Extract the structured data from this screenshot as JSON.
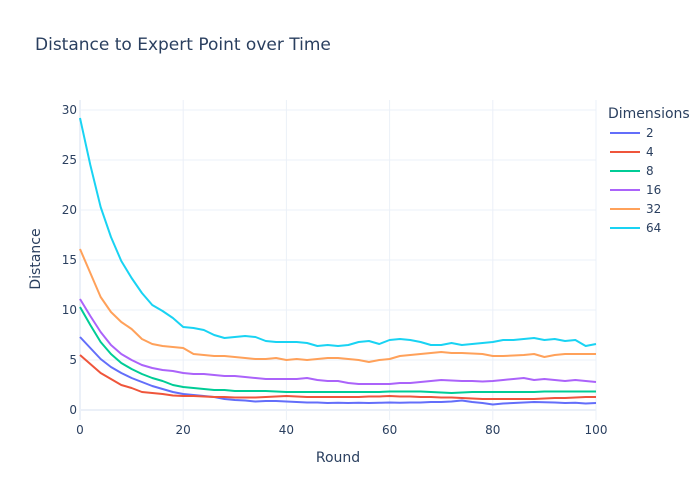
{
  "chart_data": {
    "type": "line",
    "title": "Distance to Expert Point over Time",
    "xlabel": "Round",
    "ylabel": "Distance",
    "xlim": [
      0,
      100
    ],
    "ylim": [
      -1,
      31
    ],
    "x_ticks": [
      0,
      20,
      40,
      60,
      80,
      100
    ],
    "y_ticks": [
      0,
      5,
      10,
      15,
      20,
      25,
      30
    ],
    "grid": true,
    "legend": {
      "title": "Dimensions",
      "placement": "right"
    },
    "series": [
      {
        "name": "2",
        "color": "#636efa",
        "points": [
          [
            0,
            7.3
          ],
          [
            2,
            6.2
          ],
          [
            4,
            5.1
          ],
          [
            6,
            4.3
          ],
          [
            8,
            3.7
          ],
          [
            10,
            3.2
          ],
          [
            12,
            2.8
          ],
          [
            14,
            2.4
          ],
          [
            16,
            2.1
          ],
          [
            18,
            1.8
          ],
          [
            20,
            1.6
          ],
          [
            22,
            1.5
          ],
          [
            24,
            1.4
          ],
          [
            26,
            1.3
          ],
          [
            28,
            1.1
          ],
          [
            30,
            1.0
          ],
          [
            32,
            0.95
          ],
          [
            34,
            0.85
          ],
          [
            36,
            0.9
          ],
          [
            38,
            0.9
          ],
          [
            40,
            0.85
          ],
          [
            42,
            0.8
          ],
          [
            44,
            0.75
          ],
          [
            46,
            0.75
          ],
          [
            48,
            0.7
          ],
          [
            50,
            0.72
          ],
          [
            52,
            0.7
          ],
          [
            54,
            0.72
          ],
          [
            56,
            0.7
          ],
          [
            58,
            0.72
          ],
          [
            60,
            0.75
          ],
          [
            62,
            0.72
          ],
          [
            64,
            0.75
          ],
          [
            66,
            0.75
          ],
          [
            68,
            0.8
          ],
          [
            70,
            0.8
          ],
          [
            72,
            0.85
          ],
          [
            74,
            0.95
          ],
          [
            76,
            0.8
          ],
          [
            78,
            0.7
          ],
          [
            80,
            0.55
          ],
          [
            82,
            0.65
          ],
          [
            84,
            0.7
          ],
          [
            86,
            0.75
          ],
          [
            88,
            0.8
          ],
          [
            90,
            0.78
          ],
          [
            92,
            0.75
          ],
          [
            94,
            0.7
          ],
          [
            96,
            0.72
          ],
          [
            98,
            0.65
          ],
          [
            100,
            0.7
          ]
        ]
      },
      {
        "name": "4",
        "color": "#ef553b",
        "points": [
          [
            0,
            5.5
          ],
          [
            2,
            4.6
          ],
          [
            4,
            3.7
          ],
          [
            6,
            3.1
          ],
          [
            8,
            2.5
          ],
          [
            10,
            2.2
          ],
          [
            12,
            1.8
          ],
          [
            14,
            1.7
          ],
          [
            16,
            1.6
          ],
          [
            18,
            1.45
          ],
          [
            20,
            1.4
          ],
          [
            22,
            1.4
          ],
          [
            24,
            1.35
          ],
          [
            26,
            1.3
          ],
          [
            28,
            1.3
          ],
          [
            30,
            1.25
          ],
          [
            32,
            1.25
          ],
          [
            34,
            1.25
          ],
          [
            36,
            1.3
          ],
          [
            38,
            1.35
          ],
          [
            40,
            1.4
          ],
          [
            42,
            1.35
          ],
          [
            44,
            1.3
          ],
          [
            46,
            1.3
          ],
          [
            48,
            1.3
          ],
          [
            50,
            1.3
          ],
          [
            52,
            1.3
          ],
          [
            54,
            1.3
          ],
          [
            56,
            1.35
          ],
          [
            58,
            1.35
          ],
          [
            60,
            1.4
          ],
          [
            62,
            1.35
          ],
          [
            64,
            1.35
          ],
          [
            66,
            1.3
          ],
          [
            68,
            1.3
          ],
          [
            70,
            1.25
          ],
          [
            72,
            1.25
          ],
          [
            74,
            1.2
          ],
          [
            76,
            1.15
          ],
          [
            78,
            1.1
          ],
          [
            80,
            1.1
          ],
          [
            82,
            1.1
          ],
          [
            84,
            1.1
          ],
          [
            86,
            1.1
          ],
          [
            88,
            1.1
          ],
          [
            90,
            1.15
          ],
          [
            92,
            1.2
          ],
          [
            94,
            1.2
          ],
          [
            96,
            1.25
          ],
          [
            98,
            1.3
          ],
          [
            100,
            1.3
          ]
        ]
      },
      {
        "name": "8",
        "color": "#00cc96",
        "points": [
          [
            0,
            10.3
          ],
          [
            2,
            8.5
          ],
          [
            4,
            6.8
          ],
          [
            6,
            5.6
          ],
          [
            8,
            4.7
          ],
          [
            10,
            4.1
          ],
          [
            12,
            3.6
          ],
          [
            14,
            3.2
          ],
          [
            16,
            2.9
          ],
          [
            18,
            2.5
          ],
          [
            20,
            2.3
          ],
          [
            22,
            2.2
          ],
          [
            24,
            2.1
          ],
          [
            26,
            2.0
          ],
          [
            28,
            2.0
          ],
          [
            30,
            1.9
          ],
          [
            32,
            1.9
          ],
          [
            34,
            1.9
          ],
          [
            36,
            1.9
          ],
          [
            38,
            1.85
          ],
          [
            40,
            1.8
          ],
          [
            42,
            1.8
          ],
          [
            44,
            1.8
          ],
          [
            46,
            1.8
          ],
          [
            48,
            1.8
          ],
          [
            50,
            1.8
          ],
          [
            52,
            1.8
          ],
          [
            54,
            1.8
          ],
          [
            56,
            1.8
          ],
          [
            58,
            1.8
          ],
          [
            60,
            1.85
          ],
          [
            62,
            1.85
          ],
          [
            64,
            1.85
          ],
          [
            66,
            1.85
          ],
          [
            68,
            1.8
          ],
          [
            70,
            1.75
          ],
          [
            72,
            1.7
          ],
          [
            74,
            1.75
          ],
          [
            76,
            1.8
          ],
          [
            78,
            1.8
          ],
          [
            80,
            1.8
          ],
          [
            82,
            1.8
          ],
          [
            84,
            1.8
          ],
          [
            86,
            1.8
          ],
          [
            88,
            1.8
          ],
          [
            90,
            1.85
          ],
          [
            92,
            1.85
          ],
          [
            94,
            1.85
          ],
          [
            96,
            1.85
          ],
          [
            98,
            1.85
          ],
          [
            100,
            1.85
          ]
        ]
      },
      {
        "name": "16",
        "color": "#ab63fa",
        "points": [
          [
            0,
            11.1
          ],
          [
            2,
            9.4
          ],
          [
            4,
            7.8
          ],
          [
            6,
            6.5
          ],
          [
            8,
            5.6
          ],
          [
            10,
            5.0
          ],
          [
            12,
            4.5
          ],
          [
            14,
            4.2
          ],
          [
            16,
            4.0
          ],
          [
            18,
            3.9
          ],
          [
            20,
            3.7
          ],
          [
            22,
            3.6
          ],
          [
            24,
            3.6
          ],
          [
            26,
            3.5
          ],
          [
            28,
            3.4
          ],
          [
            30,
            3.4
          ],
          [
            32,
            3.3
          ],
          [
            34,
            3.2
          ],
          [
            36,
            3.1
          ],
          [
            38,
            3.1
          ],
          [
            40,
            3.1
          ],
          [
            42,
            3.1
          ],
          [
            44,
            3.2
          ],
          [
            46,
            3.0
          ],
          [
            48,
            2.9
          ],
          [
            50,
            2.9
          ],
          [
            52,
            2.7
          ],
          [
            54,
            2.6
          ],
          [
            56,
            2.6
          ],
          [
            58,
            2.6
          ],
          [
            60,
            2.6
          ],
          [
            62,
            2.7
          ],
          [
            64,
            2.7
          ],
          [
            66,
            2.8
          ],
          [
            68,
            2.9
          ],
          [
            70,
            3.0
          ],
          [
            72,
            2.95
          ],
          [
            74,
            2.9
          ],
          [
            76,
            2.9
          ],
          [
            78,
            2.85
          ],
          [
            80,
            2.9
          ],
          [
            82,
            3.0
          ],
          [
            84,
            3.1
          ],
          [
            86,
            3.2
          ],
          [
            88,
            3.0
          ],
          [
            90,
            3.1
          ],
          [
            92,
            3.0
          ],
          [
            94,
            2.9
          ],
          [
            96,
            3.0
          ],
          [
            98,
            2.9
          ],
          [
            100,
            2.8
          ]
        ]
      },
      {
        "name": "32",
        "color": "#ffa15a",
        "points": [
          [
            0,
            16.1
          ],
          [
            2,
            13.7
          ],
          [
            4,
            11.3
          ],
          [
            6,
            9.8
          ],
          [
            8,
            8.8
          ],
          [
            10,
            8.1
          ],
          [
            12,
            7.1
          ],
          [
            14,
            6.6
          ],
          [
            16,
            6.4
          ],
          [
            18,
            6.3
          ],
          [
            20,
            6.2
          ],
          [
            22,
            5.6
          ],
          [
            24,
            5.5
          ],
          [
            26,
            5.4
          ],
          [
            28,
            5.4
          ],
          [
            30,
            5.3
          ],
          [
            32,
            5.2
          ],
          [
            34,
            5.1
          ],
          [
            36,
            5.1
          ],
          [
            38,
            5.2
          ],
          [
            40,
            5.0
          ],
          [
            42,
            5.1
          ],
          [
            44,
            5.0
          ],
          [
            46,
            5.1
          ],
          [
            48,
            5.2
          ],
          [
            50,
            5.2
          ],
          [
            52,
            5.1
          ],
          [
            54,
            5.0
          ],
          [
            56,
            4.8
          ],
          [
            58,
            5.0
          ],
          [
            60,
            5.1
          ],
          [
            62,
            5.4
          ],
          [
            64,
            5.5
          ],
          [
            66,
            5.6
          ],
          [
            68,
            5.7
          ],
          [
            70,
            5.8
          ],
          [
            72,
            5.7
          ],
          [
            74,
            5.7
          ],
          [
            76,
            5.65
          ],
          [
            78,
            5.6
          ],
          [
            80,
            5.4
          ],
          [
            82,
            5.4
          ],
          [
            84,
            5.45
          ],
          [
            86,
            5.5
          ],
          [
            88,
            5.6
          ],
          [
            90,
            5.3
          ],
          [
            92,
            5.5
          ],
          [
            94,
            5.6
          ],
          [
            96,
            5.6
          ],
          [
            98,
            5.6
          ],
          [
            100,
            5.6
          ]
        ]
      },
      {
        "name": "64",
        "color": "#19d3f3",
        "points": [
          [
            0,
            29.2
          ],
          [
            2,
            24.5
          ],
          [
            4,
            20.3
          ],
          [
            6,
            17.3
          ],
          [
            8,
            14.9
          ],
          [
            10,
            13.2
          ],
          [
            12,
            11.7
          ],
          [
            14,
            10.5
          ],
          [
            16,
            9.9
          ],
          [
            18,
            9.2
          ],
          [
            20,
            8.3
          ],
          [
            22,
            8.2
          ],
          [
            24,
            8.0
          ],
          [
            26,
            7.5
          ],
          [
            28,
            7.2
          ],
          [
            30,
            7.3
          ],
          [
            32,
            7.4
          ],
          [
            34,
            7.3
          ],
          [
            36,
            6.9
          ],
          [
            38,
            6.8
          ],
          [
            40,
            6.8
          ],
          [
            42,
            6.8
          ],
          [
            44,
            6.7
          ],
          [
            46,
            6.4
          ],
          [
            48,
            6.5
          ],
          [
            50,
            6.4
          ],
          [
            52,
            6.5
          ],
          [
            54,
            6.8
          ],
          [
            56,
            6.9
          ],
          [
            58,
            6.6
          ],
          [
            60,
            7.0
          ],
          [
            62,
            7.1
          ],
          [
            64,
            7.0
          ],
          [
            66,
            6.8
          ],
          [
            68,
            6.5
          ],
          [
            70,
            6.5
          ],
          [
            72,
            6.7
          ],
          [
            74,
            6.5
          ],
          [
            76,
            6.6
          ],
          [
            78,
            6.7
          ],
          [
            80,
            6.8
          ],
          [
            82,
            7.0
          ],
          [
            84,
            7.0
          ],
          [
            86,
            7.1
          ],
          [
            88,
            7.2
          ],
          [
            90,
            7.0
          ],
          [
            92,
            7.1
          ],
          [
            94,
            6.9
          ],
          [
            96,
            7.0
          ],
          [
            98,
            6.4
          ],
          [
            100,
            6.6
          ]
        ]
      }
    ]
  }
}
